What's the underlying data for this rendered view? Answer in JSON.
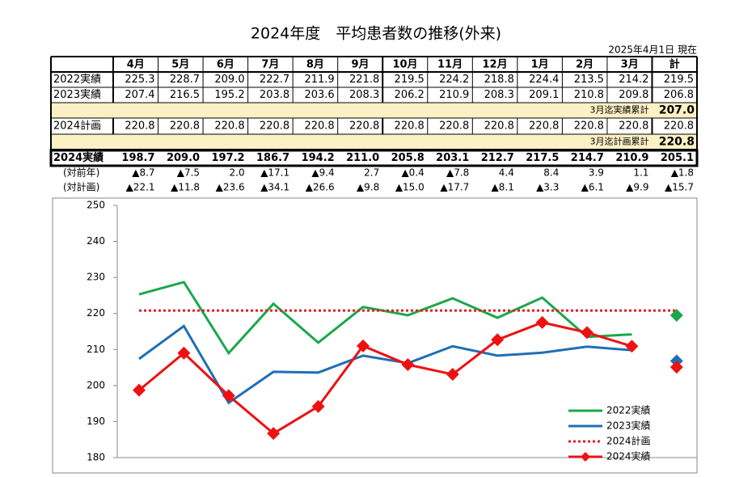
{
  "title": "2024年度　平均患者数の推移(外来)",
  "date": "2025年4月1日 現在",
  "table": {
    "columns": [
      "4月",
      "5月",
      "6月",
      "7月",
      "8月",
      "9月",
      "10月",
      "11月",
      "12月",
      "1月",
      "2月",
      "3月",
      "計"
    ],
    "rows": [
      {
        "label": "2022実績",
        "cells": [
          "225.3",
          "228.7",
          "209.0",
          "222.7",
          "211.9",
          "221.8",
          "219.5",
          "224.2",
          "218.8",
          "224.4",
          "213.5",
          "214.2",
          "219.5"
        ]
      },
      {
        "label": "2023実績",
        "cells": [
          "207.4",
          "216.5",
          "195.2",
          "203.8",
          "203.6",
          "208.3",
          "206.2",
          "210.9",
          "208.3",
          "209.1",
          "210.8",
          "209.8",
          "206.8"
        ]
      },
      {
        "note": "3月迄実績累計",
        "value": "207.0"
      },
      {
        "label": "2024計画",
        "cells": [
          "220.8",
          "220.8",
          "220.8",
          "220.8",
          "220.8",
          "220.8",
          "220.8",
          "220.8",
          "220.8",
          "220.8",
          "220.8",
          "220.8",
          "220.8"
        ]
      },
      {
        "note": "3月迄計画累計",
        "value": "220.8"
      },
      {
        "label": "2024実績",
        "cells": [
          "198.7",
          "209.0",
          "197.2",
          "186.7",
          "194.2",
          "211.0",
          "205.8",
          "203.1",
          "212.7",
          "217.5",
          "214.7",
          "210.9",
          "205.1"
        ]
      },
      {
        "label": "(対前年)",
        "cells": [
          "▲8.7",
          "▲7.5",
          "2.0",
          "▲17.1",
          "▲9.4",
          "2.7",
          "▲0.4",
          "▲7.8",
          "4.4",
          "8.4",
          "3.9",
          "1.1",
          "▲1.8"
        ]
      },
      {
        "label": "(対計画)",
        "cells": [
          "▲22.1",
          "▲11.8",
          "▲23.6",
          "▲34.1",
          "▲26.6",
          "▲9.8",
          "▲15.0",
          "▲17.7",
          "▲8.1",
          "▲3.3",
          "▲6.1",
          "▲9.9",
          "▲15.7"
        ]
      }
    ]
  },
  "chart_data": {
    "type": "line",
    "ylim": [
      180,
      250
    ],
    "yticks": [
      180,
      190,
      200,
      210,
      220,
      230,
      240,
      250
    ],
    "series": [
      {
        "name": "2022実績",
        "color": "#1aa84a",
        "dash": false,
        "line_to_last": false,
        "markers": "last",
        "values": [
          225.3,
          228.7,
          209.0,
          222.7,
          211.9,
          221.8,
          219.5,
          224.2,
          218.8,
          224.4,
          213.5,
          214.2,
          219.5
        ]
      },
      {
        "name": "2023実績",
        "color": "#1f6fb5",
        "dash": false,
        "line_to_last": false,
        "markers": "last",
        "values": [
          207.4,
          216.5,
          195.2,
          203.8,
          203.6,
          208.3,
          206.2,
          210.9,
          208.3,
          209.1,
          210.8,
          209.8,
          206.8
        ]
      },
      {
        "name": "2024計画",
        "color": "#e02020",
        "dash": true,
        "line_to_last": true,
        "markers": "none",
        "values": [
          220.8,
          220.8,
          220.8,
          220.8,
          220.8,
          220.8,
          220.8,
          220.8,
          220.8,
          220.8,
          220.8,
          220.8,
          220.8
        ]
      },
      {
        "name": "2024実績",
        "color": "#ee1111",
        "dash": false,
        "line_to_last": false,
        "markers": "all",
        "values": [
          198.7,
          209.0,
          197.2,
          186.7,
          194.2,
          211.0,
          205.8,
          203.1,
          212.7,
          217.5,
          214.7,
          210.9,
          205.1
        ]
      }
    ]
  }
}
